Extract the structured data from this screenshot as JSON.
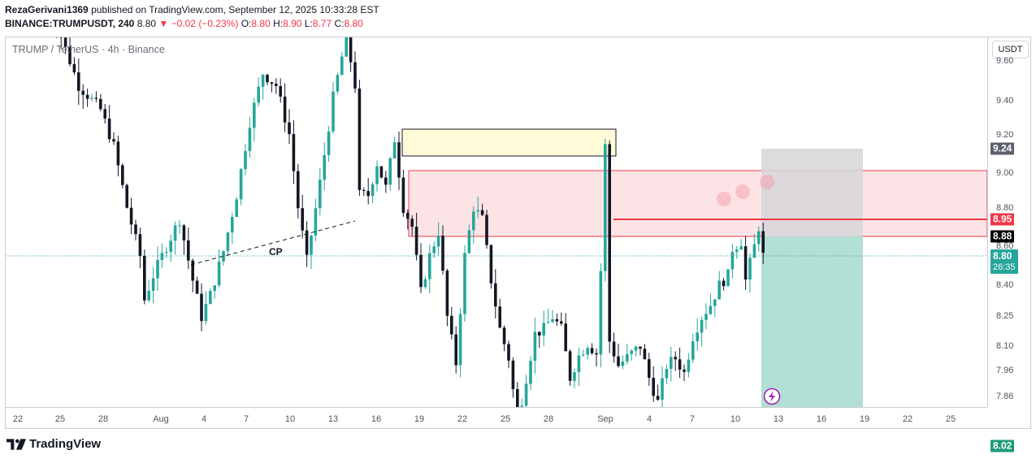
{
  "header": {
    "author": "RezaGerivani1369",
    "published_text": "published on TradingView.com, September 12, 2025 10:33:28 EST",
    "symbol": "BINANCE:TRUMPUSDT, 240",
    "last": "8.80",
    "change": "▼ −0.02 (−0.23%)",
    "o_label": "O:",
    "o_value": "8.80",
    "h_label": "H:",
    "h_value": "8.90",
    "l_label": "L:",
    "l_value": "8.77",
    "c_label": "C:",
    "c_value": "8.80"
  },
  "series_legend": "TRUMP / TetherUS · 4h · Binance",
  "price_axis": {
    "currency": "USDT",
    "ticks": [
      "9.60",
      "9.40",
      "9.20",
      "9.00",
      "8.80",
      "8.60",
      "8.40",
      "8.25",
      "8.10",
      "7.96",
      "7.86"
    ],
    "tags": {
      "stop": "9.24",
      "resistance": "8.95",
      "entry": "8.88",
      "last": "8.80",
      "countdown": "26:35",
      "target": "8.02"
    }
  },
  "time_axis": {
    "ticks": [
      "22",
      "25",
      "28",
      "Aug",
      "4",
      "7",
      "10",
      "13",
      "16",
      "19",
      "22",
      "25",
      "28",
      "Sep",
      "4",
      "7",
      "10",
      "13",
      "16",
      "19",
      "22",
      "25"
    ]
  },
  "annotation": {
    "cp_label": "CP"
  },
  "colors": {
    "up": "#26a69a",
    "down": "#131722",
    "zone_red": "#f23645",
    "zone_fill": "#fce4e6",
    "supply_fill": "#fffbd8",
    "stop_fill": "#d6d6d8",
    "target_fill": "#b2dfd6",
    "last_tag": "#26a69a",
    "resistance_tag": "#f23645",
    "event": "#9c27b0"
  },
  "chart_data": {
    "type": "candlestick",
    "symbol": "TRUMPUSDT",
    "timeframe": "240",
    "last_price": 8.8,
    "position": {
      "side": "short",
      "entry": 8.88,
      "stop": 9.24,
      "target": 8.02
    },
    "levels": {
      "resistance": 8.95,
      "zone_top": 9.15,
      "zone_bottom": 8.88,
      "supply_top": 9.32,
      "supply_bottom": 9.21
    },
    "trendline_label": "CP",
    "ohlc": {
      "o": 8.8,
      "h": 8.9,
      "l": 8.77,
      "c": 8.8
    },
    "path_points": [
      [
        0,
        9.85
      ],
      [
        7,
        9.5
      ],
      [
        12,
        9.4
      ],
      [
        15,
        9.25
      ],
      [
        18,
        9.0
      ],
      [
        21,
        8.8
      ],
      [
        22,
        8.62
      ],
      [
        24,
        8.72
      ],
      [
        27,
        8.84
      ],
      [
        30,
        8.95
      ],
      [
        33,
        8.7
      ],
      [
        35,
        8.55
      ],
      [
        37,
        8.64
      ],
      [
        40,
        8.82
      ],
      [
        43,
        9.05
      ],
      [
        46,
        9.35
      ],
      [
        49,
        9.55
      ],
      [
        52,
        9.5
      ],
      [
        55,
        9.3
      ],
      [
        57,
        9.0
      ],
      [
        59,
        8.78
      ],
      [
        62,
        9.1
      ],
      [
        65,
        9.45
      ],
      [
        68,
        9.7
      ],
      [
        70,
        9.5
      ],
      [
        71,
        9.05
      ],
      [
        73,
        9.05
      ],
      [
        75,
        9.18
      ],
      [
        77,
        9.08
      ],
      [
        79,
        9.28
      ],
      [
        81,
        9.0
      ],
      [
        83,
        8.92
      ],
      [
        85,
        8.65
      ],
      [
        87,
        8.8
      ],
      [
        89,
        8.9
      ],
      [
        91,
        8.55
      ],
      [
        93,
        8.36
      ],
      [
        95,
        8.8
      ],
      [
        97,
        9.0
      ],
      [
        99,
        8.95
      ],
      [
        101,
        8.7
      ],
      [
        103,
        8.5
      ],
      [
        105,
        8.38
      ],
      [
        107,
        8.12
      ],
      [
        109,
        8.3
      ],
      [
        111,
        8.48
      ],
      [
        113,
        8.5
      ],
      [
        115,
        8.55
      ],
      [
        117,
        8.5
      ],
      [
        119,
        8.3
      ],
      [
        121,
        8.39
      ],
      [
        123,
        8.44
      ],
      [
        125,
        8.4
      ],
      [
        126,
        8.74
      ],
      [
        127,
        9.25
      ],
      [
        128,
        8.45
      ],
      [
        130,
        8.35
      ],
      [
        133,
        8.4
      ],
      [
        135,
        8.43
      ],
      [
        137,
        8.3
      ],
      [
        139,
        8.2
      ],
      [
        141,
        8.35
      ],
      [
        143,
        8.38
      ],
      [
        145,
        8.32
      ],
      [
        147,
        8.47
      ],
      [
        149,
        8.55
      ],
      [
        151,
        8.6
      ],
      [
        153,
        8.68
      ],
      [
        155,
        8.72
      ],
      [
        156,
        8.83
      ],
      [
        158,
        8.86
      ],
      [
        159,
        8.7
      ],
      [
        161,
        8.84
      ],
      [
        162,
        8.92
      ],
      [
        163,
        8.8
      ]
    ]
  }
}
